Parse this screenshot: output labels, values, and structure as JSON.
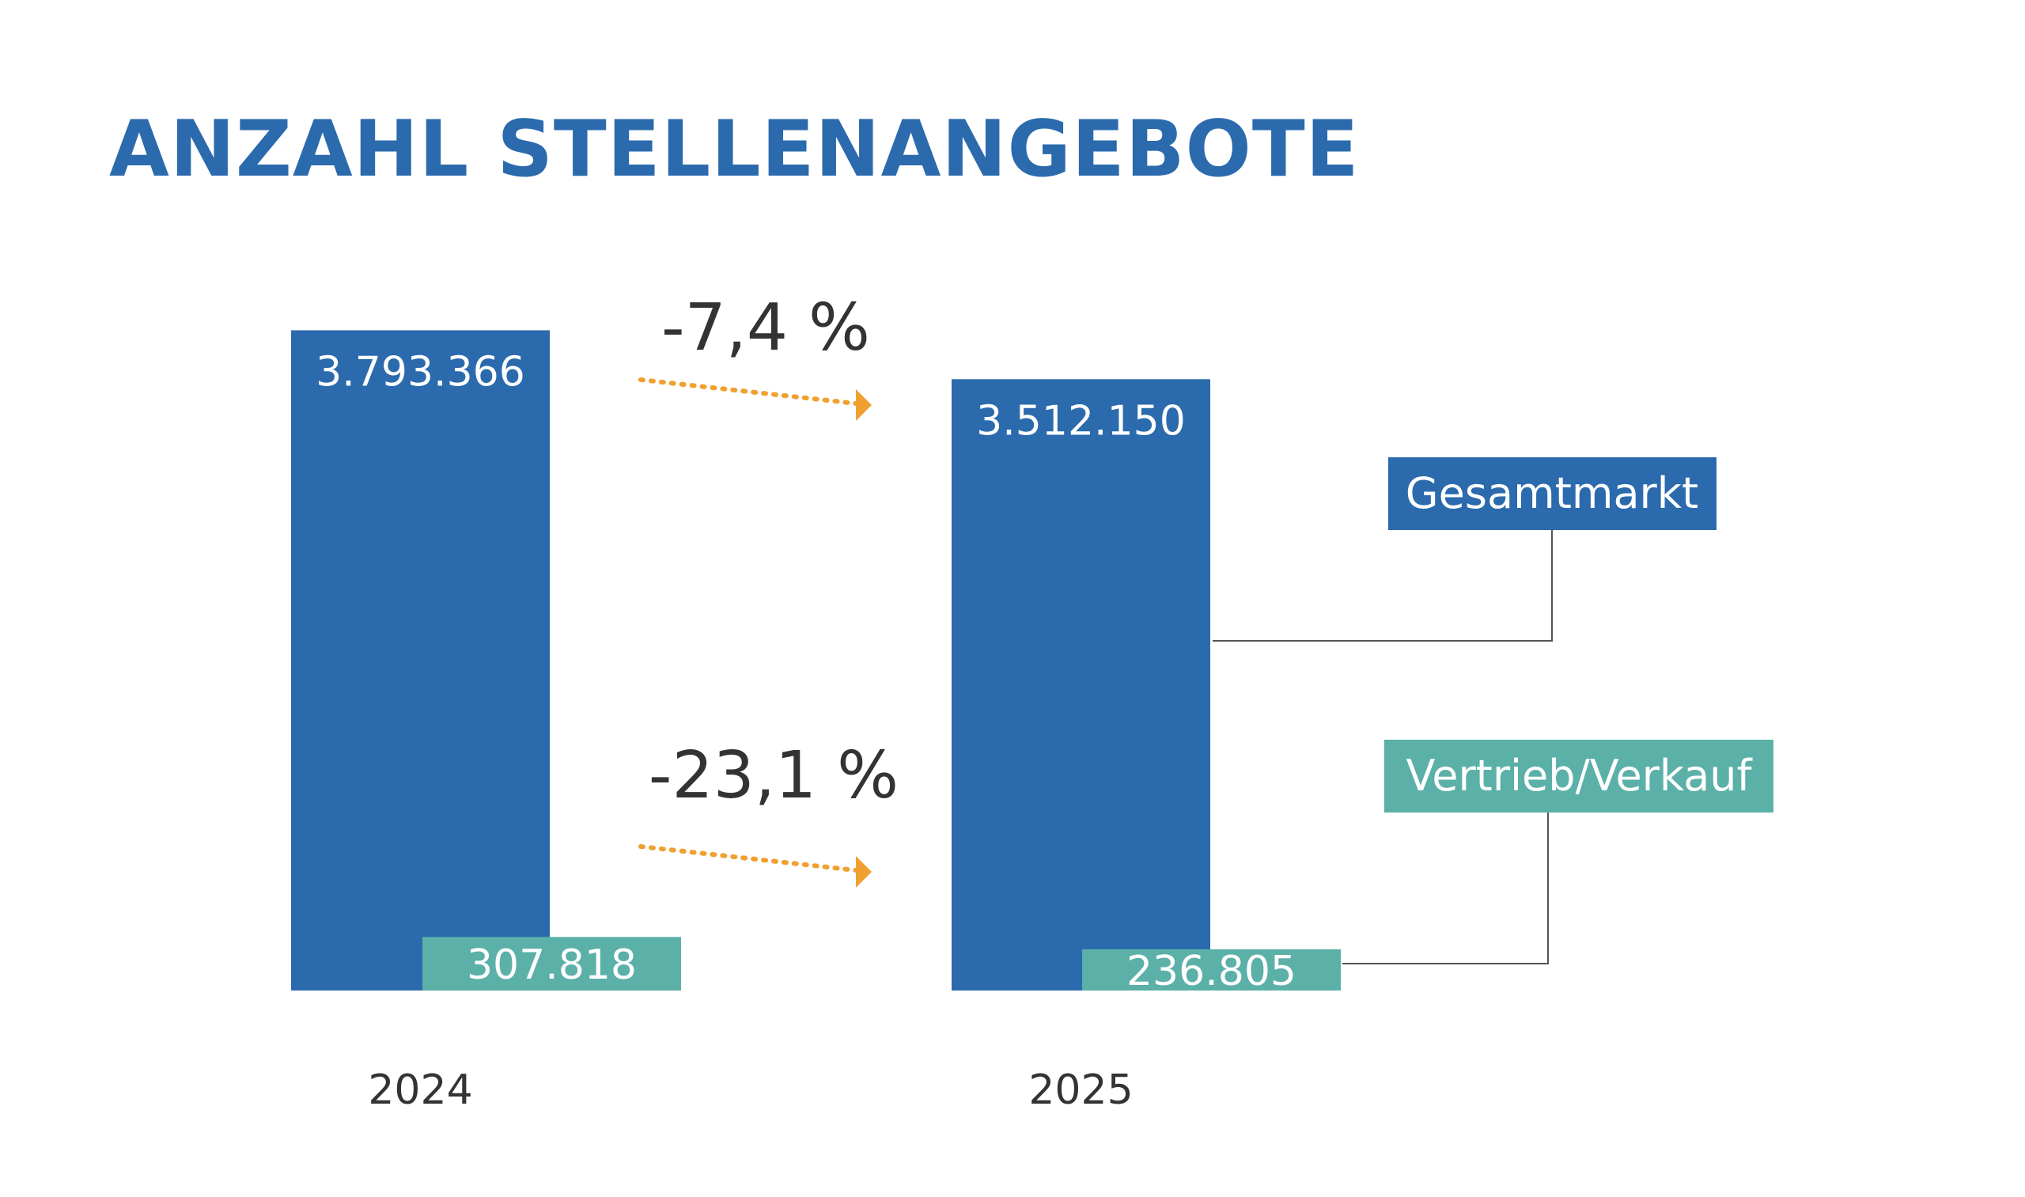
{
  "chart_data": {
    "type": "bar",
    "title": "ANZAHL STELLENANGEBOTE",
    "categories": [
      "2024",
      "2025"
    ],
    "series": [
      {
        "name": "Gesamtmarkt",
        "values": [
          3793366,
          3512150
        ],
        "value_labels": [
          "3.793.366",
          "3.512.150"
        ],
        "color": "#2b6aad"
      },
      {
        "name": "Vertrieb/Verkauf",
        "values": [
          307818,
          236805
        ],
        "value_labels": [
          "307.818",
          "236.805"
        ],
        "color": "#5bb0a8"
      }
    ],
    "changes": [
      {
        "series": "Gesamtmarkt",
        "label": "-7,4 %"
      },
      {
        "series": "Vertrieb/Verkauf",
        "label": "-23,1 %"
      }
    ],
    "ylim": [
      0,
      4000000
    ],
    "grid": false,
    "legend": "right",
    "arrow_color": "#f0a030",
    "leader_color": "#555555"
  }
}
